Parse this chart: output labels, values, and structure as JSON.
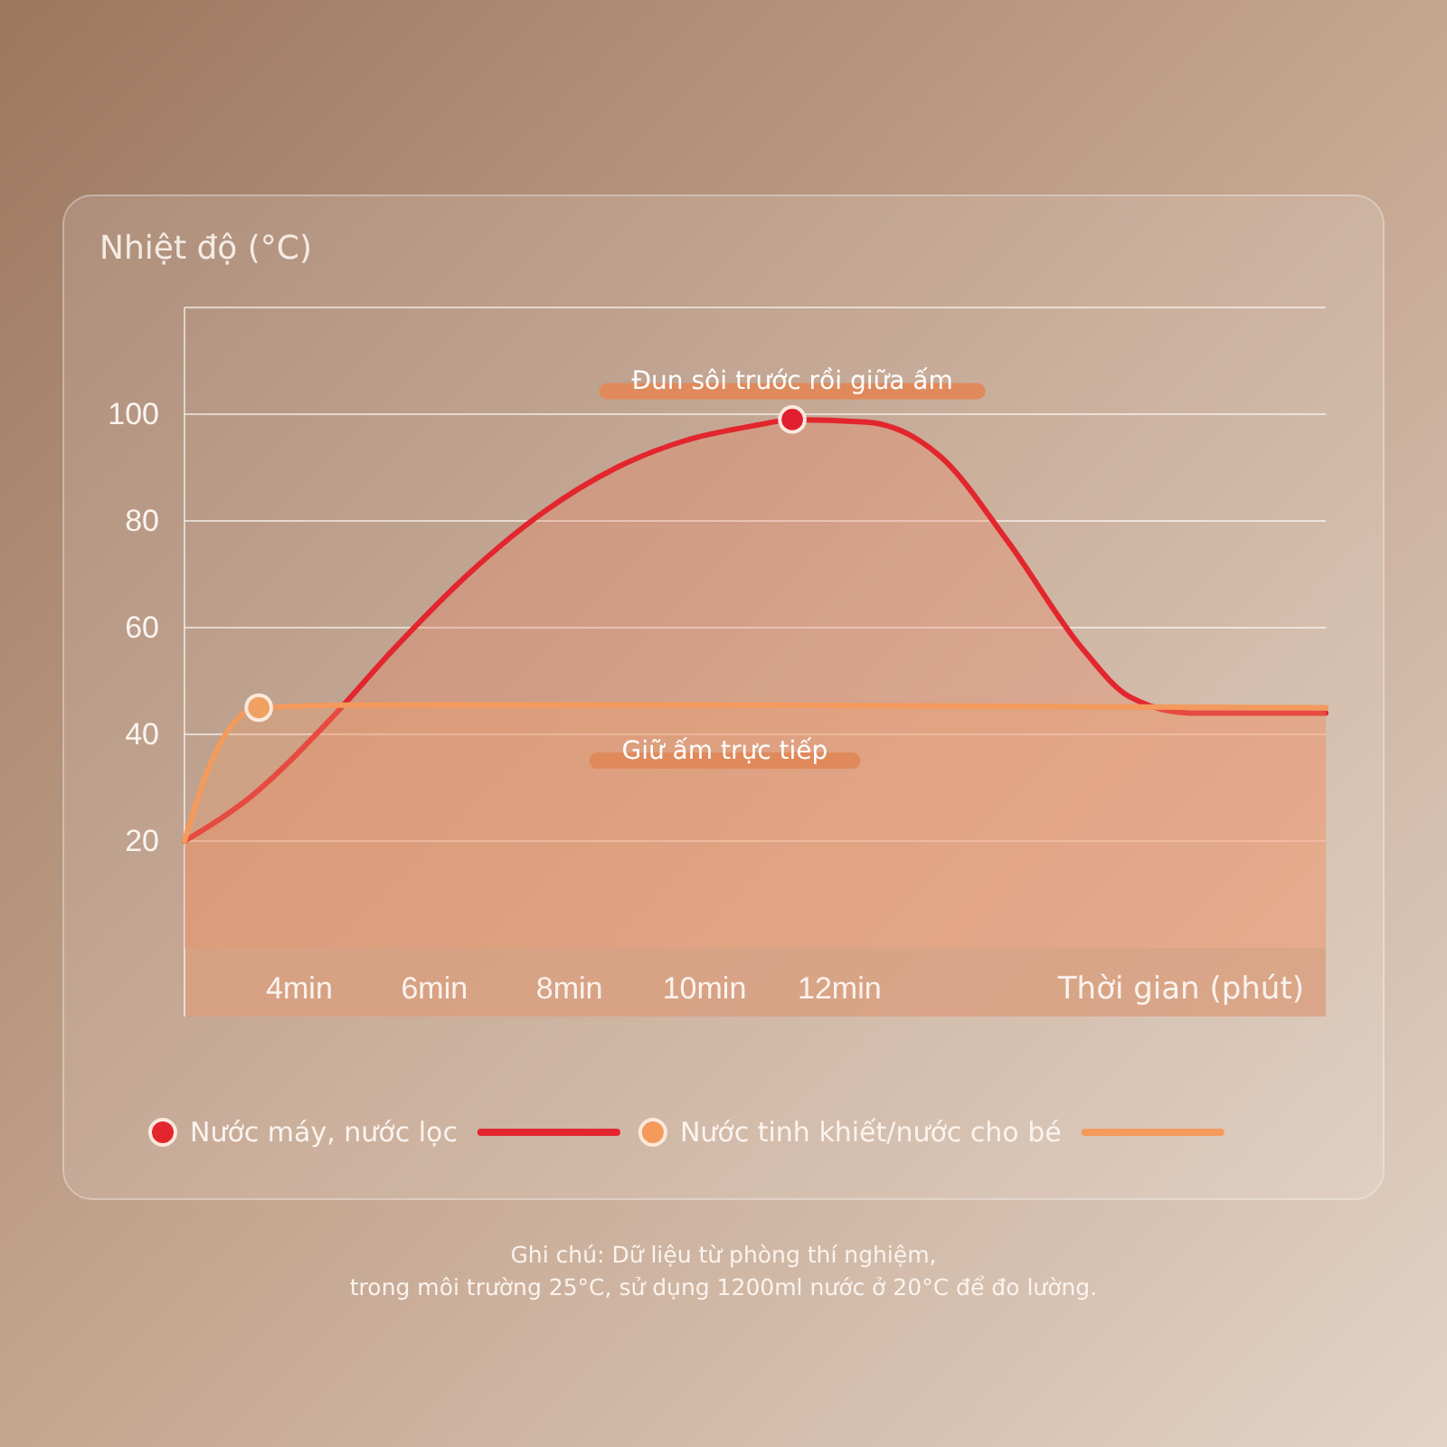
{
  "chart_data": {
    "type": "area",
    "ylabel": "Nhiệt độ (°C)",
    "xlabel": "Thời gian (phút)",
    "xlim": [
      2.3,
      19.2
    ],
    "ylim": [
      0,
      120
    ],
    "xticks": [
      {
        "value": 4,
        "label": "4min"
      },
      {
        "value": 6,
        "label": "6min"
      },
      {
        "value": 8,
        "label": "8min"
      },
      {
        "value": 10,
        "label": "10min"
      },
      {
        "value": 12,
        "label": "12min"
      }
    ],
    "yticks": [
      20,
      40,
      60,
      80,
      100,
      {
        "value": 120,
        "label": null
      }
    ],
    "grid": "y",
    "legend": "bottom",
    "marker": "none",
    "series": [
      {
        "name": "Nước máy, nước lọc",
        "color": "#e3262e",
        "x": [
          2.3,
          3.3,
          4.4,
          5.4,
          6.5,
          7.6,
          8.7,
          9.7,
          10.8,
          11.3,
          12.4,
          13.5,
          14.5,
          15.6,
          16.3,
          17.2,
          19.2
        ],
        "values": [
          20,
          28.5,
          42,
          56,
          70,
          81.5,
          90,
          95,
          98,
          99,
          98.5,
          92,
          76,
          56,
          47,
          44,
          44
        ]
      },
      {
        "name": "Nước tinh khiết/nước cho bé",
        "color": "#f39a5c",
        "x": [
          2.3,
          2.7,
          3.4,
          4.9,
          10,
          19.2
        ],
        "values": [
          20,
          35,
          45,
          45.5,
          45.5,
          45
        ]
      },
      {
        "type": "scatter",
        "marker": "circle",
        "color": "#f0a060",
        "x": [
          3.4
        ],
        "values": [
          45
        ]
      },
      {
        "type": "scatter",
        "marker": "circle",
        "color": "#e02030",
        "x": [
          11.3
        ],
        "values": [
          99
        ]
      }
    ],
    "annotations": [
      {
        "text": "Đun sôi trước rồi giữa ấm",
        "x": 11.3,
        "y": 99
      },
      {
        "text": "Giữ ấm trực tiếp",
        "x": 10.3,
        "y": 45
      },
      "Ghi chú: Dữ liệu từ phòng thí nghiệm,\ntrong môi trường 25°C, sử dụng 1200ml nước ở 20°C để đo lường."
    ]
  }
}
